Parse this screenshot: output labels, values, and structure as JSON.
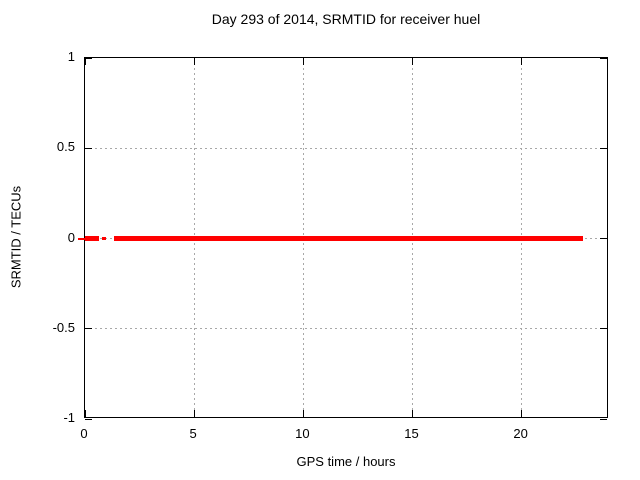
{
  "chart_data": {
    "type": "line",
    "title": "Day 293 of 2014, SRMTID for receiver huel",
    "xlabel": "GPS time / hours",
    "ylabel": "SRMTID / TECUs",
    "xlim": [
      0,
      24
    ],
    "ylim": [
      -1,
      1
    ],
    "xticks": [
      {
        "value": 0,
        "label": "0"
      },
      {
        "value": 5,
        "label": "5"
      },
      {
        "value": 10,
        "label": "10"
      },
      {
        "value": 15,
        "label": "15"
      },
      {
        "value": 20,
        "label": "20"
      }
    ],
    "yticks": [
      {
        "value": 1,
        "label": "1"
      },
      {
        "value": 0.5,
        "label": "0.5"
      },
      {
        "value": 0,
        "label": "0"
      },
      {
        "value": -0.5,
        "label": "-0.5"
      },
      {
        "value": -1,
        "label": "-1"
      }
    ],
    "grid": "dashed",
    "grid_color": "#a8a8a8",
    "border_color": "#000000",
    "legend": "none",
    "series": [
      {
        "name": "SRMTID",
        "color": "#ff0000",
        "y": 0,
        "segments": [
          {
            "x_start": -0.3,
            "x_end": 0.0,
            "y": 0,
            "thickness": "thin"
          },
          {
            "x_start": 0.0,
            "x_end": 0.65,
            "y": 0,
            "thickness": "thick"
          },
          {
            "x_start": 0.8,
            "x_end": 0.95,
            "y": 0,
            "thickness": "medium"
          },
          {
            "x_start": 1.35,
            "x_end": 22.8,
            "y": 0,
            "thickness": "thick"
          }
        ]
      }
    ]
  }
}
